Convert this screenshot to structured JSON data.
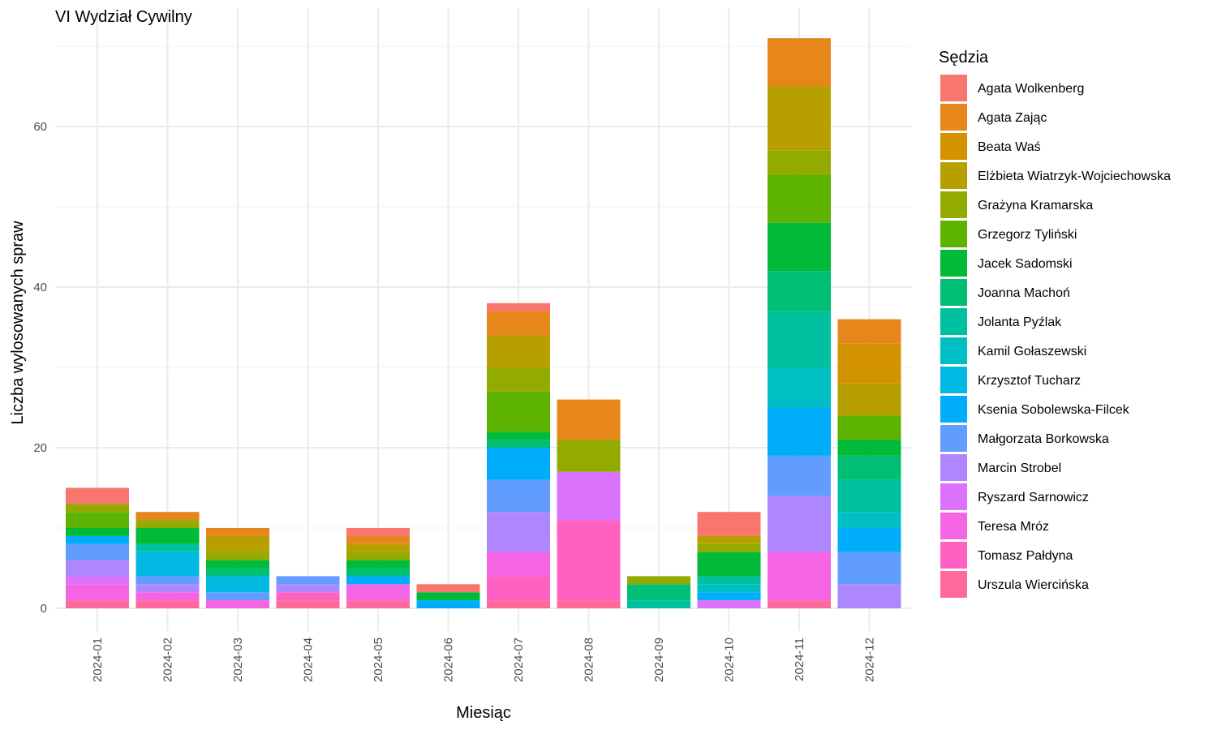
{
  "chart_data": {
    "type": "bar",
    "stacked": true,
    "title": "VI Wydział Cywilny",
    "xlabel": "Miesiąc",
    "ylabel": "Liczba wylosowanych spraw",
    "ylim": [
      0,
      74
    ],
    "yticks": [
      0,
      20,
      40,
      60
    ],
    "grid": true,
    "legend_title": "Sędzia",
    "legend_position": "right",
    "categories": [
      "2024-01",
      "2024-02",
      "2024-03",
      "2024-04",
      "2024-05",
      "2024-06",
      "2024-07",
      "2024-08",
      "2024-09",
      "2024-10",
      "2024-11",
      "2024-12"
    ],
    "series": [
      {
        "name": "Agata Wolkenberg",
        "color": "#F8766D",
        "values": [
          2,
          0,
          0,
          0,
          1,
          1,
          1,
          0,
          0,
          3,
          0,
          0
        ]
      },
      {
        "name": "Agata Zając",
        "color": "#E7861B",
        "values": [
          0,
          1,
          1,
          0,
          1,
          0,
          3,
          5,
          0,
          0,
          6,
          3
        ]
      },
      {
        "name": "Beata Waś",
        "color": "#D39200",
        "values": [
          0,
          0,
          0,
          0,
          0,
          0,
          0,
          0,
          0,
          0,
          0,
          5
        ]
      },
      {
        "name": "Elżbieta Wiatrzyk-Wojciechowska",
        "color": "#B79F00",
        "values": [
          0,
          0,
          2,
          0,
          1,
          0,
          4,
          0,
          0,
          1,
          8,
          4
        ]
      },
      {
        "name": "Grażyna Kramarska",
        "color": "#93AA00",
        "values": [
          1,
          1,
          1,
          0,
          1,
          0,
          3,
          4,
          1,
          1,
          3,
          0
        ]
      },
      {
        "name": "Grzegorz Tyliński",
        "color": "#5EB300",
        "values": [
          2,
          0,
          0,
          0,
          0,
          0,
          5,
          0,
          0,
          0,
          6,
          3
        ]
      },
      {
        "name": "Jacek Sadomski",
        "color": "#00BA38",
        "values": [
          1,
          2,
          1,
          0,
          1,
          1,
          1,
          0,
          0,
          3,
          6,
          2
        ]
      },
      {
        "name": "Joanna Machoń",
        "color": "#00BF74",
        "values": [
          0,
          0,
          1,
          0,
          1,
          0,
          1,
          0,
          2,
          0,
          5,
          3
        ]
      },
      {
        "name": "Jolanta Pyźlak",
        "color": "#00C19F",
        "values": [
          0,
          1,
          0,
          0,
          0,
          0,
          0,
          0,
          1,
          1,
          7,
          4
        ]
      },
      {
        "name": "Kamil Gołaszewski",
        "color": "#00BFC4",
        "values": [
          0,
          0,
          0,
          0,
          0,
          0,
          0,
          0,
          0,
          1,
          5,
          2
        ]
      },
      {
        "name": "Krzysztof Tucharz",
        "color": "#00B9E3",
        "values": [
          0,
          3,
          2,
          0,
          0,
          0,
          0,
          0,
          0,
          0,
          0,
          0
        ]
      },
      {
        "name": "Ksenia Sobolewska-Filcek",
        "color": "#00ADFA",
        "values": [
          1,
          0,
          0,
          0,
          1,
          1,
          4,
          0,
          0,
          1,
          6,
          3
        ]
      },
      {
        "name": "Małgorzata Borkowska",
        "color": "#619CFF",
        "values": [
          2,
          1,
          1,
          1,
          0,
          0,
          4,
          0,
          0,
          0,
          5,
          4
        ]
      },
      {
        "name": "Marcin Strobel",
        "color": "#AE87FF",
        "values": [
          2,
          1,
          0,
          1,
          0,
          0,
          5,
          0,
          0,
          0,
          7,
          3
        ]
      },
      {
        "name": "Ryszard Sarnowicz",
        "color": "#DB72FB",
        "values": [
          1,
          0,
          0,
          0,
          0,
          0,
          0,
          6,
          0,
          1,
          0,
          0
        ]
      },
      {
        "name": "Teresa Mróz",
        "color": "#F564E3",
        "values": [
          2,
          1,
          1,
          0,
          2,
          0,
          3,
          0,
          0,
          0,
          6,
          0
        ]
      },
      {
        "name": "Tomasz Pałdyna",
        "color": "#FF61C3",
        "values": [
          0,
          0,
          0,
          1,
          0,
          0,
          3,
          10,
          0,
          0,
          0,
          0
        ]
      },
      {
        "name": "Urszula Wiercińska",
        "color": "#FF699C",
        "values": [
          1,
          1,
          0,
          1,
          1,
          0,
          1,
          1,
          0,
          0,
          1,
          0
        ]
      }
    ]
  }
}
